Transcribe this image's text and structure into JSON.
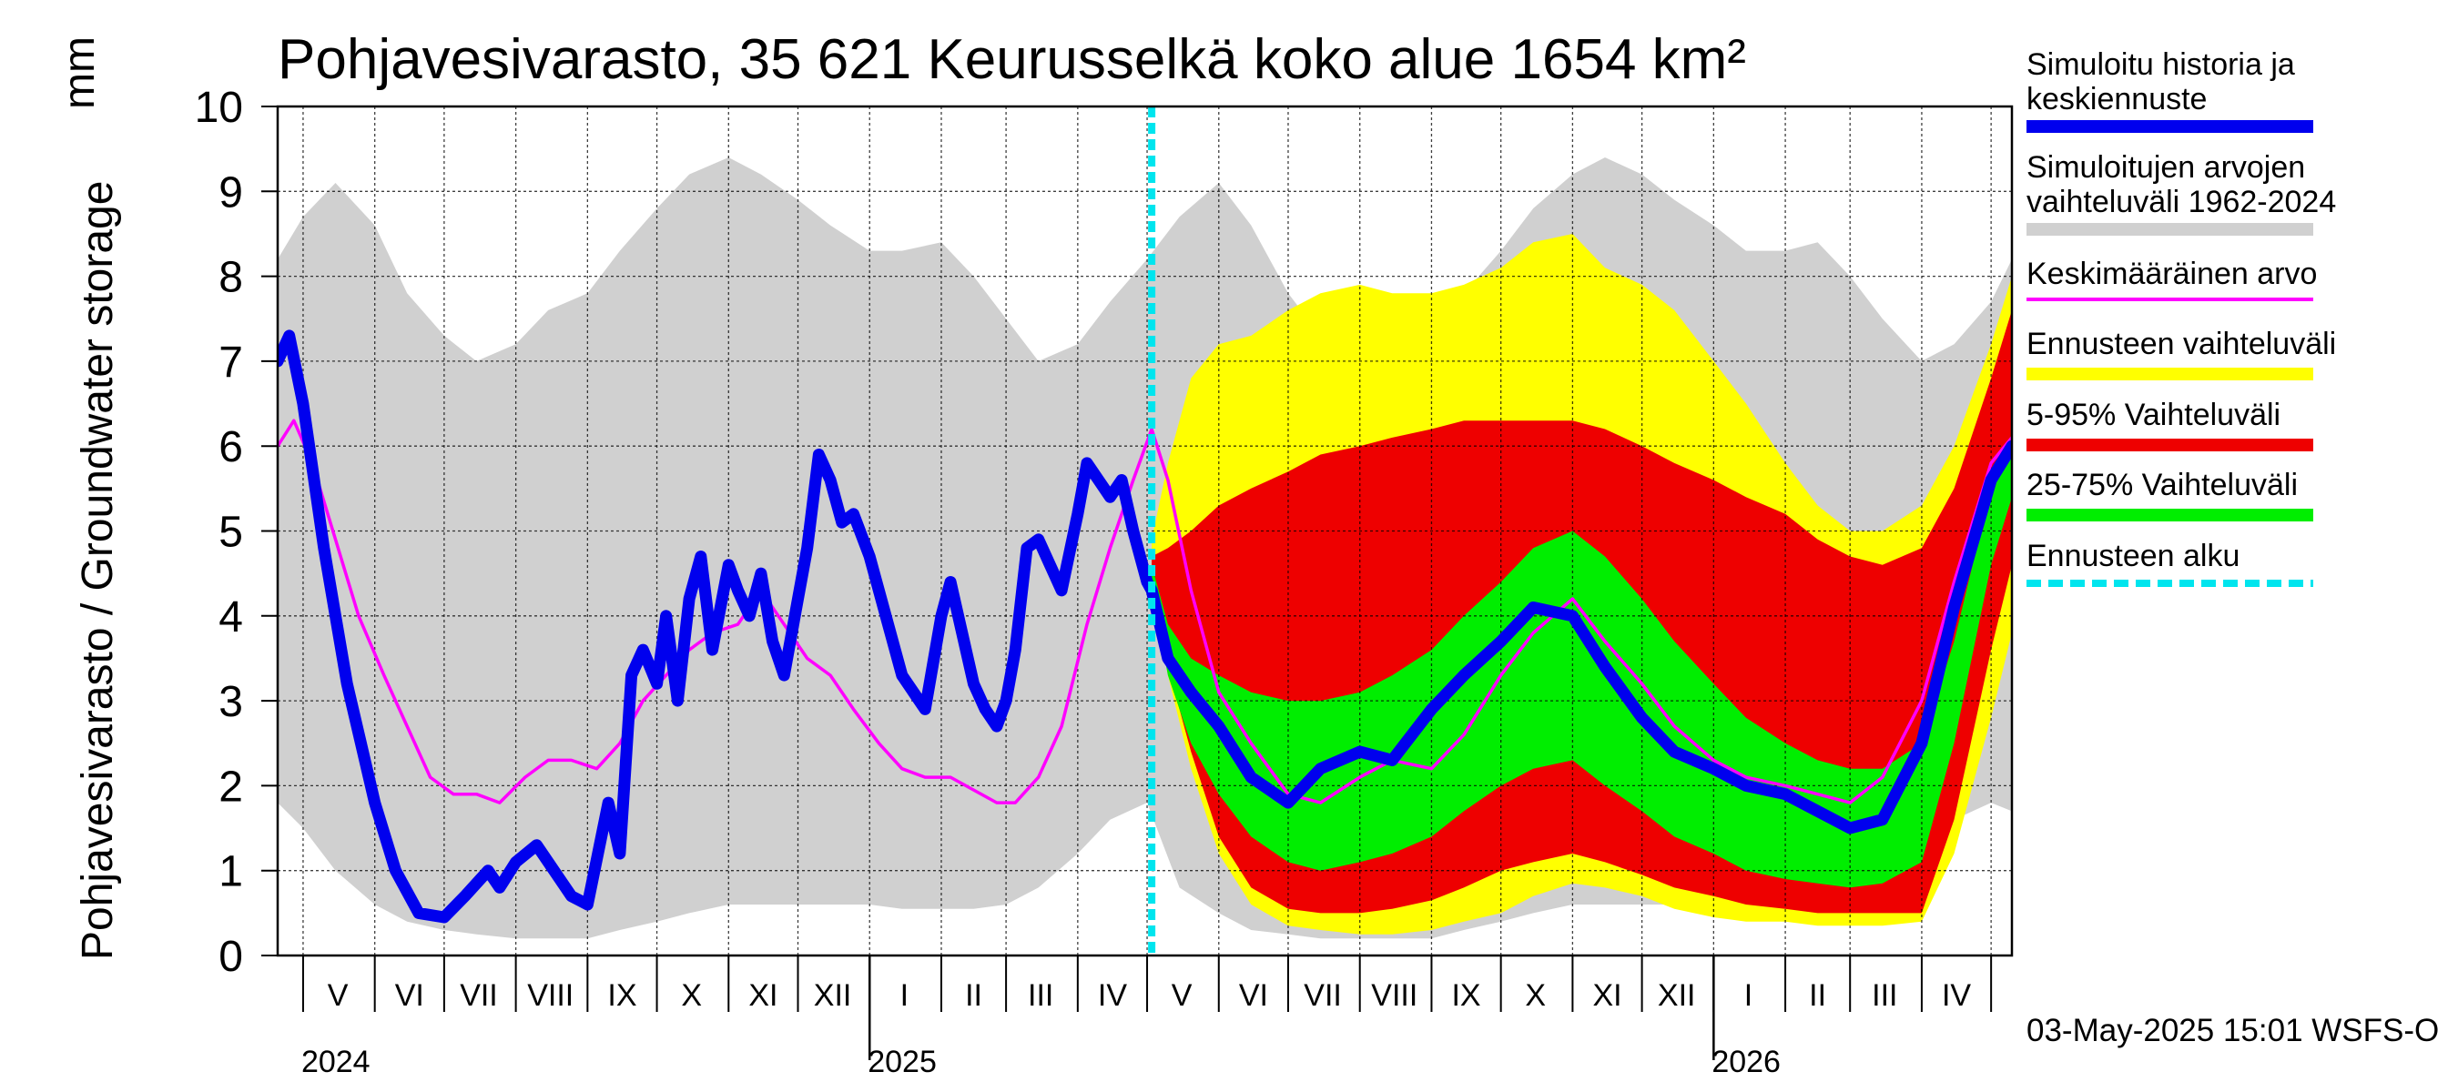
{
  "title": "Pohjavesivarasto, 35 621 Keurusselkä koko alue 1654 km²",
  "y_axis_label": "Pohjavesivarasto / Groundwater storage",
  "y_unit": "mm",
  "footer": "03-May-2025 15:01 WSFS-O",
  "legend": [
    {
      "label": "Simuloitu historia ja\nkeskiennuste",
      "color": "#0000ee",
      "style": "solid"
    },
    {
      "label": "Simuloitujen arvojen\nvaihteluväli 1962-2024",
      "color": "#d0d0d0",
      "style": "solid"
    },
    {
      "label": "Keskimääräinen arvo",
      "color": "#ff00ff",
      "style": "thin"
    },
    {
      "label": "Ennusteen vaihteluväli",
      "color": "#ffff00",
      "style": "solid"
    },
    {
      "label": "5-95% Vaihteluväli",
      "color": "#ee0000",
      "style": "solid"
    },
    {
      "label": "25-75% Vaihteluväli",
      "color": "#00ee00",
      "style": "solid"
    },
    {
      "label": "Ennusteen alku",
      "color": "#00e5ee",
      "style": "dashed"
    }
  ],
  "chart_data": {
    "type": "area",
    "title": "Pohjavesivarasto, 35 621 Keurusselkä koko alue 1654 km²",
    "ylabel": "Pohjavesivarasto / Groundwater storage mm",
    "ylim": [
      0,
      10
    ],
    "yticks": [
      0,
      1,
      2,
      3,
      4,
      5,
      6,
      7,
      8,
      9,
      10
    ],
    "xlim": [
      "2024-04-20",
      "2026-05-10"
    ],
    "grid": true,
    "month_ticks": [
      "2024-05-01",
      "2024-06-01",
      "2024-07-01",
      "2024-08-01",
      "2024-09-01",
      "2024-10-01",
      "2024-11-01",
      "2024-12-01",
      "2025-01-01",
      "2025-02-01",
      "2025-03-01",
      "2025-04-01",
      "2025-05-01",
      "2025-06-01",
      "2025-07-01",
      "2025-08-01",
      "2025-09-01",
      "2025-10-01",
      "2025-11-01",
      "2025-12-01",
      "2026-01-01",
      "2026-02-01",
      "2026-03-01",
      "2026-04-01",
      "2026-05-01"
    ],
    "month_labels": [
      {
        "label": "V",
        "x": "2024-05-16"
      },
      {
        "label": "VI",
        "x": "2024-06-16"
      },
      {
        "label": "VII",
        "x": "2024-07-16"
      },
      {
        "label": "VIII",
        "x": "2024-08-16"
      },
      {
        "label": "IX",
        "x": "2024-09-16"
      },
      {
        "label": "X",
        "x": "2024-10-16"
      },
      {
        "label": "XI",
        "x": "2024-11-16"
      },
      {
        "label": "XII",
        "x": "2024-12-16"
      },
      {
        "label": "I",
        "x": "2025-01-16"
      },
      {
        "label": "II",
        "x": "2025-02-15"
      },
      {
        "label": "III",
        "x": "2025-03-16"
      },
      {
        "label": "IV",
        "x": "2025-04-16"
      },
      {
        "label": "V",
        "x": "2025-05-16"
      },
      {
        "label": "VI",
        "x": "2025-06-16"
      },
      {
        "label": "VII",
        "x": "2025-07-16"
      },
      {
        "label": "VIII",
        "x": "2025-08-16"
      },
      {
        "label": "IX",
        "x": "2025-09-16"
      },
      {
        "label": "X",
        "x": "2025-10-16"
      },
      {
        "label": "XI",
        "x": "2025-11-16"
      },
      {
        "label": "XII",
        "x": "2025-12-16"
      },
      {
        "label": "I",
        "x": "2026-01-16"
      },
      {
        "label": "II",
        "x": "2026-02-15"
      },
      {
        "label": "III",
        "x": "2026-03-16"
      },
      {
        "label": "IV",
        "x": "2026-04-16"
      }
    ],
    "year_labels": [
      {
        "label": "2024",
        "x": "2024-05-01"
      },
      {
        "label": "2025",
        "x": "2025-01-01"
      },
      {
        "label": "2026",
        "x": "2026-01-01"
      }
    ],
    "year_boundaries": [
      "2025-01-01",
      "2026-01-01"
    ],
    "forecast_start": "2025-05-03",
    "series": [
      {
        "name": "Simuloitujen arvojen vaihteluväli 1962-2024",
        "kind": "band",
        "color": "#d0d0d0",
        "x": [
          "2024-04-20",
          "2024-05-01",
          "2024-05-15",
          "2024-06-01",
          "2024-06-15",
          "2024-07-01",
          "2024-07-15",
          "2024-08-01",
          "2024-08-15",
          "2024-09-01",
          "2024-09-15",
          "2024-10-01",
          "2024-10-15",
          "2024-11-01",
          "2024-11-15",
          "2024-12-01",
          "2024-12-15",
          "2025-01-01",
          "2025-01-15",
          "2025-02-01",
          "2025-02-15",
          "2025-03-01",
          "2025-03-15",
          "2025-04-01",
          "2025-04-15",
          "2025-05-01",
          "2025-05-15",
          "2025-06-01",
          "2025-06-15",
          "2025-07-01",
          "2025-07-15",
          "2025-08-01",
          "2025-08-15",
          "2025-09-01",
          "2025-09-15",
          "2025-10-01",
          "2025-10-15",
          "2025-11-01",
          "2025-11-15",
          "2025-12-01",
          "2025-12-15",
          "2026-01-01",
          "2026-01-15",
          "2026-02-01",
          "2026-02-15",
          "2026-03-01",
          "2026-03-15",
          "2026-04-01",
          "2026-04-15",
          "2026-05-01",
          "2026-05-10"
        ],
        "lower": [
          1.8,
          1.5,
          1.0,
          0.6,
          0.4,
          0.3,
          0.25,
          0.2,
          0.2,
          0.2,
          0.3,
          0.4,
          0.5,
          0.6,
          0.6,
          0.6,
          0.6,
          0.6,
          0.55,
          0.55,
          0.55,
          0.6,
          0.8,
          1.2,
          1.6,
          1.8,
          0.8,
          0.5,
          0.3,
          0.25,
          0.2,
          0.2,
          0.2,
          0.2,
          0.3,
          0.4,
          0.5,
          0.6,
          0.6,
          0.6,
          0.6,
          0.6,
          0.55,
          0.55,
          0.55,
          0.6,
          0.8,
          1.2,
          1.6,
          1.8,
          1.7
        ],
        "upper": [
          8.2,
          8.7,
          9.1,
          8.6,
          7.8,
          7.3,
          7.0,
          7.2,
          7.6,
          7.8,
          8.3,
          8.8,
          9.2,
          9.4,
          9.2,
          8.9,
          8.6,
          8.3,
          8.3,
          8.4,
          8.0,
          7.5,
          7.0,
          7.2,
          7.7,
          8.2,
          8.7,
          9.1,
          8.6,
          7.8,
          7.3,
          7.0,
          7.2,
          7.6,
          7.8,
          8.3,
          8.8,
          9.2,
          9.4,
          9.2,
          8.9,
          8.6,
          8.3,
          8.3,
          8.4,
          8.0,
          7.5,
          7.0,
          7.2,
          7.7,
          8.2
        ]
      },
      {
        "name": "Ennusteen vaihteluväli",
        "kind": "band",
        "color": "#ffff00",
        "x": [
          "2025-05-03",
          "2025-05-10",
          "2025-05-20",
          "2025-06-01",
          "2025-06-15",
          "2025-07-01",
          "2025-07-15",
          "2025-08-01",
          "2025-08-15",
          "2025-09-01",
          "2025-09-15",
          "2025-10-01",
          "2025-10-15",
          "2025-11-01",
          "2025-11-15",
          "2025-12-01",
          "2025-12-15",
          "2026-01-01",
          "2026-01-15",
          "2026-02-01",
          "2026-02-15",
          "2026-03-01",
          "2026-03-15",
          "2026-04-01",
          "2026-04-15",
          "2026-05-01",
          "2026-05-10"
        ],
        "lower": [
          4.5,
          3.3,
          2.2,
          1.2,
          0.6,
          0.35,
          0.3,
          0.25,
          0.25,
          0.3,
          0.4,
          0.5,
          0.7,
          0.85,
          0.8,
          0.7,
          0.55,
          0.45,
          0.4,
          0.4,
          0.35,
          0.35,
          0.35,
          0.4,
          1.2,
          2.8,
          3.8
        ],
        "upper": [
          4.9,
          5.8,
          6.8,
          7.2,
          7.3,
          7.6,
          7.8,
          7.9,
          7.8,
          7.8,
          7.9,
          8.1,
          8.4,
          8.5,
          8.1,
          7.9,
          7.6,
          7.0,
          6.5,
          5.8,
          5.3,
          5.0,
          5.0,
          5.3,
          6.0,
          7.2,
          8.0
        ]
      },
      {
        "name": "5-95% Vaihteluväli",
        "kind": "band",
        "color": "#ee0000",
        "x": [
          "2025-05-03",
          "2025-05-10",
          "2025-05-20",
          "2025-06-01",
          "2025-06-15",
          "2025-07-01",
          "2025-07-15",
          "2025-08-01",
          "2025-08-15",
          "2025-09-01",
          "2025-09-15",
          "2025-10-01",
          "2025-10-15",
          "2025-11-01",
          "2025-11-15",
          "2025-12-01",
          "2025-12-15",
          "2026-01-01",
          "2026-01-15",
          "2026-02-01",
          "2026-02-15",
          "2026-03-01",
          "2026-03-15",
          "2026-04-01",
          "2026-04-15",
          "2026-05-01",
          "2026-05-10"
        ],
        "lower": [
          4.4,
          3.4,
          2.4,
          1.4,
          0.8,
          0.55,
          0.5,
          0.5,
          0.55,
          0.65,
          0.8,
          1.0,
          1.1,
          1.2,
          1.1,
          0.95,
          0.8,
          0.7,
          0.6,
          0.55,
          0.5,
          0.5,
          0.5,
          0.5,
          1.6,
          3.6,
          4.6
        ],
        "upper": [
          4.7,
          4.8,
          5.0,
          5.3,
          5.5,
          5.7,
          5.9,
          6.0,
          6.1,
          6.2,
          6.3,
          6.3,
          6.3,
          6.3,
          6.2,
          6.0,
          5.8,
          5.6,
          5.4,
          5.2,
          4.9,
          4.7,
          4.6,
          4.8,
          5.5,
          6.8,
          7.6
        ]
      },
      {
        "name": "25-75% Vaihteluväli",
        "kind": "band",
        "color": "#00ee00",
        "x": [
          "2025-05-03",
          "2025-05-10",
          "2025-05-20",
          "2025-06-01",
          "2025-06-15",
          "2025-07-01",
          "2025-07-15",
          "2025-08-01",
          "2025-08-15",
          "2025-09-01",
          "2025-09-15",
          "2025-10-01",
          "2025-10-15",
          "2025-11-01",
          "2025-11-15",
          "2025-12-01",
          "2025-12-15",
          "2026-01-01",
          "2026-01-15",
          "2026-02-01",
          "2026-02-15",
          "2026-03-01",
          "2026-03-15",
          "2026-04-01",
          "2026-04-15",
          "2026-05-01",
          "2026-05-10"
        ],
        "lower": [
          4.3,
          3.3,
          2.5,
          1.9,
          1.4,
          1.1,
          1.0,
          1.1,
          1.2,
          1.4,
          1.7,
          2.0,
          2.2,
          2.3,
          2.0,
          1.7,
          1.4,
          1.2,
          1.0,
          0.9,
          0.85,
          0.8,
          0.85,
          1.1,
          2.5,
          4.6,
          5.4
        ],
        "upper": [
          4.6,
          3.9,
          3.5,
          3.3,
          3.1,
          3.0,
          3.0,
          3.1,
          3.3,
          3.6,
          4.0,
          4.4,
          4.8,
          5.0,
          4.7,
          4.2,
          3.7,
          3.2,
          2.8,
          2.5,
          2.3,
          2.2,
          2.2,
          2.5,
          3.7,
          5.5,
          6.1
        ]
      },
      {
        "name": "Keskimääräinen arvo",
        "kind": "line",
        "color": "#ff00ff",
        "x": [
          "2024-04-20",
          "2024-04-27",
          "2024-05-05",
          "2024-05-15",
          "2024-05-25",
          "2024-06-05",
          "2024-06-15",
          "2024-06-25",
          "2024-07-05",
          "2024-07-15",
          "2024-07-25",
          "2024-08-05",
          "2024-08-15",
          "2024-08-25",
          "2024-09-05",
          "2024-09-15",
          "2024-09-25",
          "2024-10-05",
          "2024-10-15",
          "2024-10-25",
          "2024-11-05",
          "2024-11-15",
          "2024-11-25",
          "2024-12-05",
          "2024-12-15",
          "2024-12-25",
          "2025-01-05",
          "2025-01-15",
          "2025-01-25",
          "2025-02-05",
          "2025-02-15",
          "2025-02-25",
          "2025-03-05",
          "2025-03-15",
          "2025-03-25",
          "2025-04-05",
          "2025-04-15",
          "2025-04-25",
          "2025-05-03",
          "2025-05-10",
          "2025-05-20",
          "2025-06-01",
          "2025-06-15",
          "2025-07-01",
          "2025-07-15",
          "2025-08-01",
          "2025-08-15",
          "2025-09-01",
          "2025-09-15",
          "2025-10-01",
          "2025-10-15",
          "2025-11-01",
          "2025-11-15",
          "2025-12-01",
          "2025-12-15",
          "2026-01-01",
          "2026-01-15",
          "2026-02-01",
          "2026-02-15",
          "2026-03-01",
          "2026-03-15",
          "2026-04-01",
          "2026-04-15",
          "2026-05-01",
          "2026-05-10"
        ],
        "values": [
          6.0,
          6.3,
          5.8,
          4.9,
          4.0,
          3.3,
          2.7,
          2.1,
          1.9,
          1.9,
          1.8,
          2.1,
          2.3,
          2.3,
          2.2,
          2.5,
          3.0,
          3.3,
          3.6,
          3.8,
          3.9,
          4.3,
          3.9,
          3.5,
          3.3,
          2.9,
          2.5,
          2.2,
          2.1,
          2.1,
          1.95,
          1.8,
          1.8,
          2.1,
          2.7,
          3.9,
          4.8,
          5.6,
          6.2,
          5.6,
          4.3,
          3.1,
          2.5,
          1.9,
          1.8,
          2.1,
          2.3,
          2.2,
          2.6,
          3.3,
          3.8,
          4.2,
          3.7,
          3.2,
          2.7,
          2.3,
          2.1,
          2.0,
          1.9,
          1.8,
          2.1,
          3.0,
          4.4,
          5.8,
          6.1
        ]
      },
      {
        "name": "Simuloitu historia ja keskiennuste",
        "kind": "line",
        "color": "#0000ee",
        "x": [
          "2024-04-20",
          "2024-04-25",
          "2024-05-01",
          "2024-05-10",
          "2024-05-20",
          "2024-06-01",
          "2024-06-10",
          "2024-06-20",
          "2024-07-01",
          "2024-07-10",
          "2024-07-20",
          "2024-07-25",
          "2024-08-01",
          "2024-08-10",
          "2024-08-20",
          "2024-08-25",
          "2024-09-01",
          "2024-09-10",
          "2024-09-15",
          "2024-09-20",
          "2024-09-25",
          "2024-10-01",
          "2024-10-05",
          "2024-10-10",
          "2024-10-15",
          "2024-10-20",
          "2024-10-25",
          "2024-11-01",
          "2024-11-05",
          "2024-11-10",
          "2024-11-15",
          "2024-11-20",
          "2024-11-25",
          "2024-12-01",
          "2024-12-05",
          "2024-12-10",
          "2024-12-15",
          "2024-12-20",
          "2024-12-25",
          "2025-01-01",
          "2025-01-10",
          "2025-01-15",
          "2025-01-20",
          "2025-01-25",
          "2025-02-01",
          "2025-02-05",
          "2025-02-10",
          "2025-02-15",
          "2025-02-20",
          "2025-02-25",
          "2025-03-01",
          "2025-03-05",
          "2025-03-10",
          "2025-03-15",
          "2025-03-20",
          "2025-03-25",
          "2025-04-01",
          "2025-04-05",
          "2025-04-10",
          "2025-04-15",
          "2025-04-20",
          "2025-04-25",
          "2025-05-01",
          "2025-05-03",
          "2025-05-10",
          "2025-05-20",
          "2025-06-01",
          "2025-06-15",
          "2025-07-01",
          "2025-07-15",
          "2025-08-01",
          "2025-08-15",
          "2025-09-01",
          "2025-09-15",
          "2025-10-01",
          "2025-10-15",
          "2025-11-01",
          "2025-11-15",
          "2025-12-01",
          "2025-12-15",
          "2026-01-01",
          "2026-01-15",
          "2026-02-01",
          "2026-02-15",
          "2026-03-01",
          "2026-03-15",
          "2026-04-01",
          "2026-04-15",
          "2026-05-01",
          "2026-05-10"
        ],
        "values": [
          7.0,
          7.3,
          6.5,
          4.8,
          3.2,
          1.8,
          1.0,
          0.5,
          0.45,
          0.7,
          1.0,
          0.8,
          1.1,
          1.3,
          0.9,
          0.7,
          0.6,
          1.8,
          1.2,
          3.3,
          3.6,
          3.2,
          4.0,
          3.0,
          4.2,
          4.7,
          3.6,
          4.6,
          4.3,
          4.0,
          4.5,
          3.7,
          3.3,
          4.2,
          4.8,
          5.9,
          5.6,
          5.1,
          5.2,
          4.7,
          3.8,
          3.3,
          3.1,
          2.9,
          4.0,
          4.4,
          3.8,
          3.2,
          2.9,
          2.7,
          3.0,
          3.6,
          4.8,
          4.9,
          4.6,
          4.3,
          5.2,
          5.8,
          5.6,
          5.4,
          5.6,
          5.0,
          4.4,
          4.3,
          3.5,
          3.1,
          2.7,
          2.1,
          1.8,
          2.2,
          2.4,
          2.3,
          2.9,
          3.3,
          3.7,
          4.1,
          4.0,
          3.4,
          2.8,
          2.4,
          2.2,
          2.0,
          1.9,
          1.7,
          1.5,
          1.6,
          2.5,
          4.1,
          5.6,
          6.0
        ]
      }
    ]
  }
}
